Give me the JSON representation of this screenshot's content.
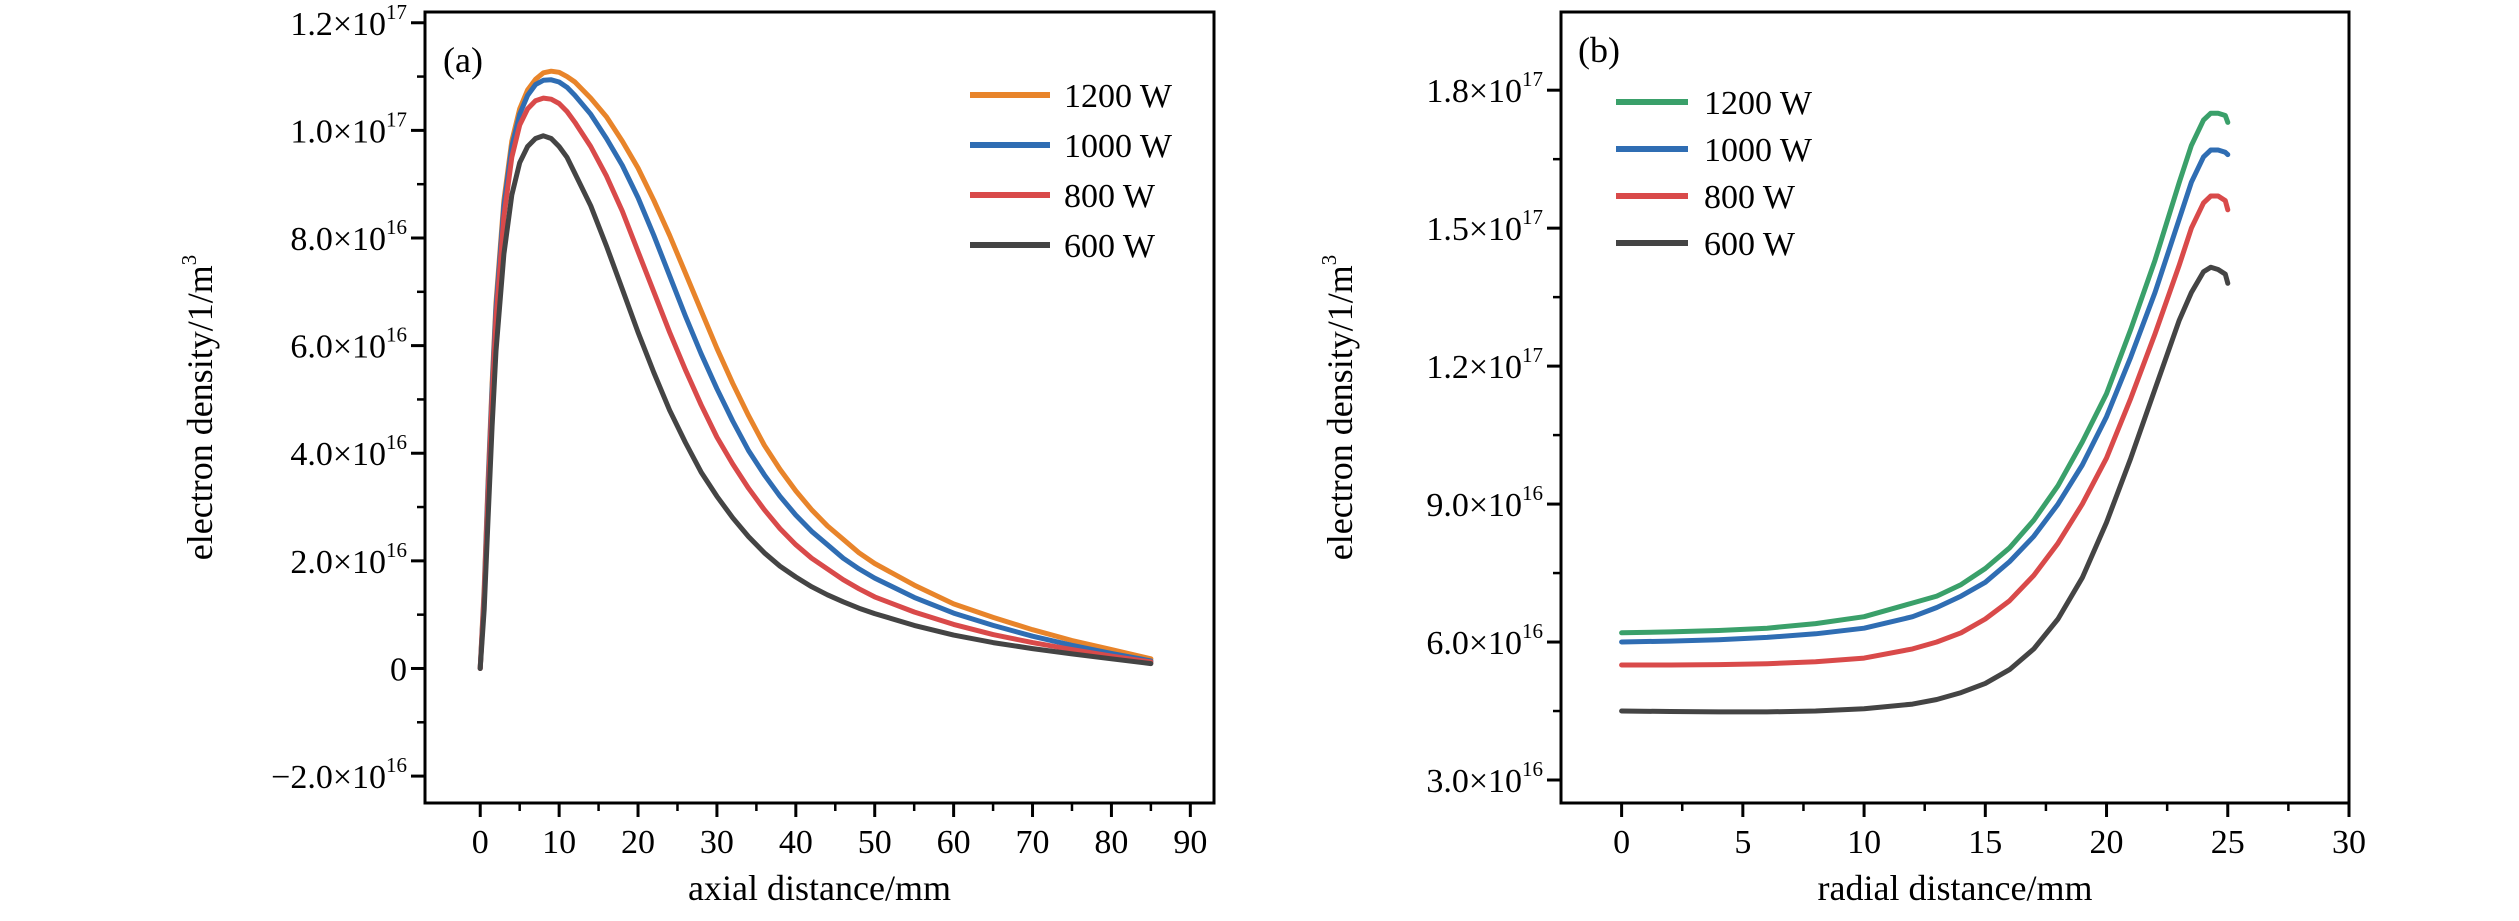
{
  "chart_data": [
    {
      "type": "line",
      "panel_label": "(a)",
      "xlabel": "axial distance/mm",
      "ylabel": "electron density/1/m",
      "ylabel_sup": "3",
      "xlim": [
        -7,
        93
      ],
      "ylim": [
        -2.5e+16,
        1.22e+17
      ],
      "xticks": [
        0,
        10,
        20,
        30,
        40,
        50,
        60,
        70,
        80,
        90
      ],
      "yticks": [
        {
          "value": 1.2e+17,
          "label": "1.2×10",
          "exp": "17"
        },
        {
          "value": 1e+17,
          "label": "1.0×10",
          "exp": "17"
        },
        {
          "value": 8e+16,
          "label": "8.0×10",
          "exp": "16"
        },
        {
          "value": 6e+16,
          "label": "6.0×10",
          "exp": "16"
        },
        {
          "value": 4e+16,
          "label": "4.0×10",
          "exp": "16"
        },
        {
          "value": 2e+16,
          "label": "2.0×10",
          "exp": "16"
        },
        {
          "value": 0,
          "label": "0",
          "exp": ""
        },
        {
          "value": -2e+16,
          "label": "−2.0×10",
          "exp": "16"
        }
      ],
      "legend_position": "top-right",
      "series": [
        {
          "name": "1200 W",
          "color": "#e8842a",
          "x": [
            0,
            0.5,
            1,
            1.5,
            2,
            3,
            4,
            5,
            6,
            7,
            8,
            9,
            10,
            11,
            12,
            14,
            16,
            18,
            20,
            22,
            24,
            26,
            28,
            30,
            32,
            34,
            36,
            38,
            40,
            42,
            44,
            46,
            48,
            50,
            55,
            60,
            65,
            70,
            75,
            80,
            85
          ],
          "y": [
            0,
            1.5e+16,
            3.5e+16,
            5.3e+16,
            6.8e+16,
            8.7e+16,
            9.8e+16,
            1.04e+17,
            1.075e+17,
            1.095e+17,
            1.107e+17,
            1.11e+17,
            1.108e+17,
            1.1e+17,
            1.09e+17,
            1.06e+17,
            1.025e+17,
            9.8e+16,
            9.3e+16,
            8.7e+16,
            8.05e+16,
            7.35e+16,
            6.65e+16,
            5.95e+16,
            5.3e+16,
            4.7e+16,
            4.15e+16,
            3.7e+16,
            3.3e+16,
            2.95e+16,
            2.65e+16,
            2.4e+16,
            2.15e+16,
            1.95e+16,
            1.55e+16,
            1.2e+16,
            9500000000000000.0,
            7200000000000000.0,
            5200000000000000.0,
            3500000000000000.0,
            1800000000000000.0
          ]
        },
        {
          "name": "1000 W",
          "color": "#2f6db3",
          "x": [
            0,
            0.5,
            1,
            1.5,
            2,
            3,
            4,
            5,
            6,
            7,
            8,
            9,
            10,
            11,
            12,
            14,
            16,
            18,
            20,
            22,
            24,
            26,
            28,
            30,
            32,
            34,
            36,
            38,
            40,
            42,
            44,
            46,
            48,
            50,
            55,
            60,
            65,
            70,
            75,
            80,
            85
          ],
          "y": [
            0,
            1.4e+16,
            3.4e+16,
            5.2e+16,
            6.7e+16,
            8.6e+16,
            9.7e+16,
            1.03e+17,
            1.065e+17,
            1.085e+17,
            1.093e+17,
            1.094e+17,
            1.09e+17,
            1.08e+17,
            1.065e+17,
            1.03e+17,
            9.85e+16,
            9.35e+16,
            8.75e+16,
            8.05e+16,
            7.3e+16,
            6.55e+16,
            5.85e+16,
            5.2e+16,
            4.6e+16,
            4.05e+16,
            3.6e+16,
            3.2e+16,
            2.85e+16,
            2.55e+16,
            2.3e+16,
            2.05e+16,
            1.85e+16,
            1.68e+16,
            1.32e+16,
            1.03e+16,
            8000000000000000.0,
            6000000000000000.0,
            4300000000000000.0,
            2800000000000000.0,
            1400000000000000.0
          ]
        },
        {
          "name": "800 W",
          "color": "#d94a4a",
          "x": [
            0,
            0.5,
            1,
            1.5,
            2,
            3,
            4,
            5,
            6,
            7,
            8,
            9,
            10,
            11,
            12,
            14,
            16,
            18,
            20,
            22,
            24,
            26,
            28,
            30,
            32,
            34,
            36,
            38,
            40,
            42,
            44,
            46,
            48,
            50,
            55,
            60,
            65,
            70,
            75,
            80,
            85
          ],
          "y": [
            0,
            1.3e+16,
            3.2e+16,
            5e+16,
            6.5e+16,
            8.4e+16,
            9.5e+16,
            1.01e+17,
            1.04e+17,
            1.055e+17,
            1.06e+17,
            1.058e+17,
            1.05e+17,
            1.035e+17,
            1.015e+17,
            9.7e+16,
            9.15e+16,
            8.5e+16,
            7.75e+16,
            7e+16,
            6.25e+16,
            5.55e+16,
            4.9e+16,
            4.3e+16,
            3.8e+16,
            3.35e+16,
            2.95e+16,
            2.6e+16,
            2.3e+16,
            2.05e+16,
            1.85e+16,
            1.65e+16,
            1.48e+16,
            1.33e+16,
            1.05e+16,
            8200000000000000.0,
            6300000000000000.0,
            4800000000000000.0,
            3500000000000000.0,
            2300000000000000.0,
            1200000000000000.0
          ]
        },
        {
          "name": "600 W",
          "color": "#444444",
          "x": [
            0,
            0.5,
            1,
            1.5,
            2,
            3,
            4,
            5,
            6,
            7,
            8,
            9,
            10,
            11,
            12,
            14,
            16,
            18,
            20,
            22,
            24,
            26,
            28,
            30,
            32,
            34,
            36,
            38,
            40,
            42,
            44,
            46,
            48,
            50,
            55,
            60,
            65,
            70,
            75,
            80,
            85
          ],
          "y": [
            0,
            1.1e+16,
            2.8e+16,
            4.5e+16,
            5.9e+16,
            7.7e+16,
            8.8e+16,
            9.4e+16,
            9.7e+16,
            9.85e+16,
            9.9e+16,
            9.85e+16,
            9.7e+16,
            9.5e+16,
            9.2e+16,
            8.6e+16,
            7.85e+16,
            7.05e+16,
            6.25e+16,
            5.5e+16,
            4.8e+16,
            4.2e+16,
            3.65e+16,
            3.2e+16,
            2.8e+16,
            2.45e+16,
            2.15e+16,
            1.9e+16,
            1.7e+16,
            1.52e+16,
            1.37e+16,
            1.24e+16,
            1.12e+16,
            1.02e+16,
            8000000000000000.0,
            6200000000000000.0,
            4800000000000000.0,
            3700000000000000.0,
            2700000000000000.0,
            1800000000000000.0,
            900000000000000.0
          ]
        }
      ]
    },
    {
      "type": "line",
      "panel_label": "(b)",
      "xlabel": "radial distance/mm",
      "ylabel": "electron density/1/m",
      "ylabel_sup": "3",
      "xlim": [
        -2.5,
        30
      ],
      "ylim": [
        2.5e+16,
        1.97e+17
      ],
      "xticks": [
        0,
        5,
        10,
        15,
        20,
        25,
        30
      ],
      "yticks": [
        {
          "value": 1.8e+17,
          "label": "1.8×10",
          "exp": "17"
        },
        {
          "value": 1.5e+17,
          "label": "1.5×10",
          "exp": "17"
        },
        {
          "value": 1.2e+17,
          "label": "1.2×10",
          "exp": "17"
        },
        {
          "value": 9e+16,
          "label": "9.0×10",
          "exp": "16"
        },
        {
          "value": 6e+16,
          "label": "6.0×10",
          "exp": "16"
        },
        {
          "value": 3e+16,
          "label": "3.0×10",
          "exp": "16"
        }
      ],
      "legend_position": "top-left",
      "series": [
        {
          "name": "1200 W",
          "color": "#3aa06a",
          "x": [
            0,
            2,
            4,
            6,
            8,
            10,
            12,
            13,
            14,
            15,
            16,
            17,
            18,
            19,
            20,
            21,
            22,
            23,
            23.5,
            24,
            24.3,
            24.6,
            24.9,
            25
          ],
          "y": [
            6.2e+16,
            6.22e+16,
            6.25e+16,
            6.3e+16,
            6.4e+16,
            6.55e+16,
            6.85e+16,
            7e+16,
            7.25e+16,
            7.6e+16,
            8.05e+16,
            8.65e+16,
            9.4e+16,
            1.035e+17,
            1.14e+17,
            1.28e+17,
            1.43e+17,
            1.6e+17,
            1.68e+17,
            1.735e+17,
            1.75e+17,
            1.75e+17,
            1.745e+17,
            1.73e+17
          ]
        },
        {
          "name": "1000 W",
          "color": "#2f6db3",
          "x": [
            0,
            2,
            4,
            6,
            8,
            10,
            12,
            13,
            14,
            15,
            16,
            17,
            18,
            19,
            20,
            21,
            22,
            23,
            23.5,
            24,
            24.3,
            24.6,
            24.9,
            25
          ],
          "y": [
            6e+16,
            6.02e+16,
            6.05e+16,
            6.1e+16,
            6.18e+16,
            6.3e+16,
            6.55e+16,
            6.75e+16,
            7e+16,
            7.3e+16,
            7.75e+16,
            8.3e+16,
            9e+16,
            9.85e+16,
            1.09e+17,
            1.22e+17,
            1.36e+17,
            1.52e+17,
            1.6e+17,
            1.655e+17,
            1.67e+17,
            1.67e+17,
            1.665e+17,
            1.66e+17
          ]
        },
        {
          "name": "800 W",
          "color": "#d94a4a",
          "x": [
            0,
            2,
            4,
            6,
            8,
            10,
            12,
            13,
            14,
            15,
            16,
            17,
            18,
            19,
            20,
            21,
            22,
            23,
            23.5,
            24,
            24.3,
            24.6,
            24.9,
            25
          ],
          "y": [
            5.5e+16,
            5.5e+16,
            5.51e+16,
            5.53e+16,
            5.57e+16,
            5.65e+16,
            5.85e+16,
            6e+16,
            6.2e+16,
            6.5e+16,
            6.9e+16,
            7.45e+16,
            8.15e+16,
            9e+16,
            1e+17,
            1.13e+17,
            1.27e+17,
            1.42e+17,
            1.5e+17,
            1.555e+17,
            1.57e+17,
            1.57e+17,
            1.56e+17,
            1.54e+17
          ]
        },
        {
          "name": "600 W",
          "color": "#444444",
          "x": [
            0,
            2,
            4,
            6,
            8,
            10,
            12,
            13,
            14,
            15,
            16,
            17,
            18,
            19,
            20,
            21,
            22,
            23,
            23.5,
            24,
            24.3,
            24.6,
            24.9,
            25
          ],
          "y": [
            4.5e+16,
            4.49e+16,
            4.48e+16,
            4.48e+16,
            4.5e+16,
            4.55e+16,
            4.65e+16,
            4.75e+16,
            4.9e+16,
            5.1e+16,
            5.4e+16,
            5.85e+16,
            6.5e+16,
            7.4e+16,
            8.6e+16,
            1e+17,
            1.15e+17,
            1.3e+17,
            1.36e+17,
            1.405e+17,
            1.415e+17,
            1.41e+17,
            1.4e+17,
            1.38e+17
          ]
        }
      ]
    }
  ]
}
